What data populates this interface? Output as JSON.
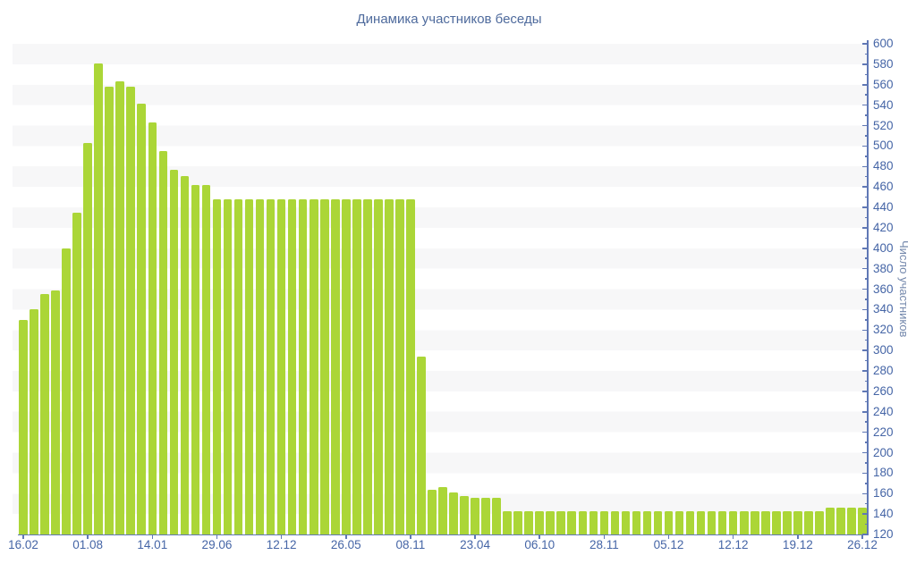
{
  "title": "Динамика участников беседы",
  "y_axis_title": "Число участников",
  "colors": {
    "bar": "#abd637",
    "axis": "#6078b5",
    "tick_label": "#4565a6",
    "title": "#4f6b9d",
    "axis_title": "#7488ac",
    "stripe": "#f7f7f8"
  },
  "chart_data": {
    "type": "bar",
    "title": "Динамика участников беседы",
    "xlabel": "",
    "ylabel": "Число участников",
    "ylim": [
      120,
      600
    ],
    "y_tick_step": 20,
    "y_tick_labels": [
      600,
      580,
      560,
      540,
      520,
      500,
      480,
      460,
      440,
      420,
      400,
      380,
      360,
      340,
      320,
      300,
      280,
      260,
      240,
      220,
      200,
      180,
      160,
      140,
      120
    ],
    "grid": "horizontal-stripes",
    "legend": null,
    "values": [
      330,
      340,
      355,
      359,
      400,
      435,
      503,
      581,
      558,
      563,
      558,
      541,
      523,
      495,
      477,
      471,
      462,
      462,
      448,
      448,
      448,
      448,
      448,
      448,
      448,
      448,
      448,
      448,
      448,
      448,
      448,
      448,
      448,
      448,
      448,
      448,
      448,
      294,
      164,
      166,
      161,
      158,
      156,
      156,
      156,
      143,
      143,
      143,
      143,
      143,
      143,
      143,
      143,
      143,
      143,
      143,
      143,
      143,
      143,
      143,
      143,
      143,
      143,
      143,
      143,
      143,
      143,
      143,
      143,
      143,
      143,
      143,
      143,
      143,
      143,
      146,
      146,
      146,
      146
    ],
    "x_tick_labels": [
      {
        "index": 0,
        "label": "16.02"
      },
      {
        "index": 6,
        "label": "01.08"
      },
      {
        "index": 12,
        "label": "14.01"
      },
      {
        "index": 18,
        "label": "29.06"
      },
      {
        "index": 24,
        "label": "12.12"
      },
      {
        "index": 30,
        "label": "26.05"
      },
      {
        "index": 36,
        "label": "08.11"
      },
      {
        "index": 42,
        "label": "23.04"
      },
      {
        "index": 48,
        "label": "06.10"
      },
      {
        "index": 54,
        "label": "28.11"
      },
      {
        "index": 60,
        "label": "05.12"
      },
      {
        "index": 66,
        "label": "12.12"
      },
      {
        "index": 72,
        "label": "19.12"
      },
      {
        "index": 78,
        "label": "26.12"
      }
    ]
  }
}
